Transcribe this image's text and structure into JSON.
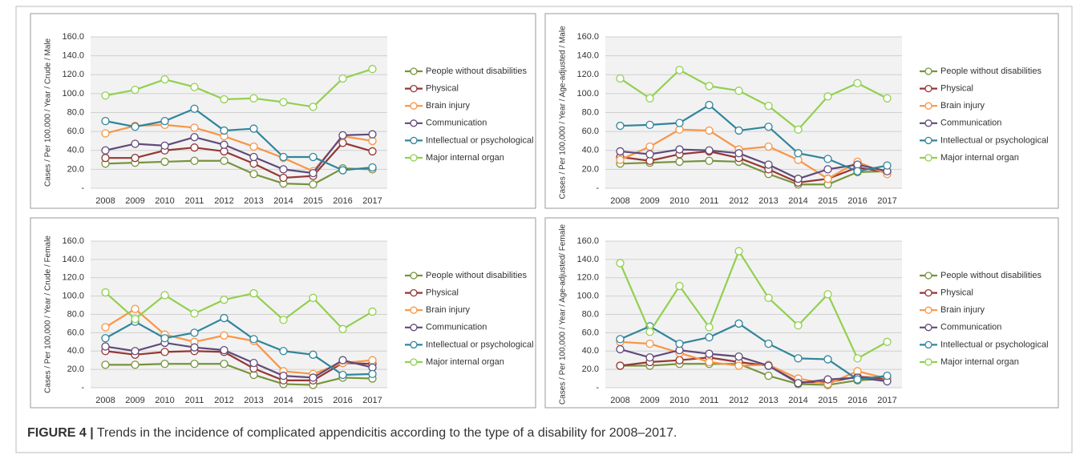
{
  "chart_data": [
    {
      "type": "line",
      "y_label": "Cases / Per 100,000 / Year / Crude / Male",
      "categories": [
        "2008",
        "2009",
        "2010",
        "2011",
        "2012",
        "2013",
        "2014",
        "2015",
        "2016",
        "2017"
      ],
      "ylim": [
        0,
        160
      ],
      "yticks": [
        {
          "value": 0,
          "label": "-"
        },
        {
          "value": 20,
          "label": "20.0"
        },
        {
          "value": 40,
          "label": "40.0"
        },
        {
          "value": 60,
          "label": "60.0"
        },
        {
          "value": 80,
          "label": "80.0"
        },
        {
          "value": 100,
          "label": "100.0"
        },
        {
          "value": 120,
          "label": "120.0"
        },
        {
          "value": 140,
          "label": "140.0"
        },
        {
          "value": 160,
          "label": "160.0"
        }
      ],
      "grid": true,
      "series": [
        {
          "name": "People without disabilities",
          "color": "#77933c",
          "values": [
            26,
            27,
            28,
            29,
            29,
            15,
            5,
            4,
            21,
            20
          ]
        },
        {
          "name": "Physical",
          "color": "#953735",
          "values": [
            32,
            32,
            40,
            43,
            39,
            26,
            11,
            13,
            48,
            39
          ]
        },
        {
          "name": "Brain injury",
          "color": "#f79646",
          "values": [
            58,
            66,
            67,
            64,
            55,
            44,
            32,
            18,
            55,
            50
          ]
        },
        {
          "name": "Communication",
          "color": "#604a7b",
          "values": [
            40,
            47,
            45,
            54,
            46,
            33,
            20,
            16,
            56,
            57
          ]
        },
        {
          "name": "Intellectual or psychological",
          "color": "#31859c",
          "values": [
            71,
            65,
            71,
            84,
            61,
            63,
            33,
            33,
            19,
            22
          ]
        },
        {
          "name": "Major internal organ",
          "color": "#92d050",
          "values": [
            98,
            104,
            115,
            107,
            94,
            95,
            91,
            86,
            116,
            126
          ]
        }
      ]
    },
    {
      "type": "line",
      "y_label": "Cases / Per 100,000 / Year / Age-adjusted / Male",
      "categories": [
        "2008",
        "2009",
        "2010",
        "2011",
        "2012",
        "2013",
        "2014",
        "2015",
        "2016",
        "2017"
      ],
      "ylim": [
        0,
        160
      ],
      "yticks": [
        {
          "value": 0,
          "label": "-"
        },
        {
          "value": 20,
          "label": "20.0"
        },
        {
          "value": 40,
          "label": "40.0"
        },
        {
          "value": 60,
          "label": "60.0"
        },
        {
          "value": 80,
          "label": "80.0"
        },
        {
          "value": 100,
          "label": "100.0"
        },
        {
          "value": 120,
          "label": "120.0"
        },
        {
          "value": 140,
          "label": "140.0"
        },
        {
          "value": 160,
          "label": "160.0"
        }
      ],
      "grid": true,
      "series": [
        {
          "name": "People without disabilities",
          "color": "#77933c",
          "values": [
            26,
            27,
            28,
            29,
            28,
            15,
            4,
            4,
            17,
            18
          ]
        },
        {
          "name": "Physical",
          "color": "#953735",
          "values": [
            33,
            29,
            36,
            39,
            32,
            20,
            6,
            10,
            22,
            17
          ]
        },
        {
          "name": "Brain injury",
          "color": "#f79646",
          "values": [
            30,
            44,
            62,
            61,
            41,
            44,
            30,
            10,
            28,
            15
          ]
        },
        {
          "name": "Communication",
          "color": "#604a7b",
          "values": [
            39,
            36,
            41,
            40,
            37,
            25,
            10,
            20,
            25,
            18
          ]
        },
        {
          "name": "Intellectual or psychological",
          "color": "#31859c",
          "values": [
            66,
            67,
            69,
            88,
            61,
            65,
            37,
            31,
            18,
            24
          ]
        },
        {
          "name": "Major internal organ",
          "color": "#92d050",
          "values": [
            116,
            95,
            125,
            108,
            103,
            87,
            62,
            97,
            111,
            95
          ]
        }
      ]
    },
    {
      "type": "line",
      "y_label": "Cases / Per 100,000 / Year / Crude / Female",
      "categories": [
        "2008",
        "2009",
        "2010",
        "2011",
        "2012",
        "2013",
        "2014",
        "2015",
        "2016",
        "2017"
      ],
      "ylim": [
        0,
        160
      ],
      "yticks": [
        {
          "value": 0,
          "label": "-"
        },
        {
          "value": 20,
          "label": "20.0"
        },
        {
          "value": 40,
          "label": "40.0"
        },
        {
          "value": 60,
          "label": "60.0"
        },
        {
          "value": 80,
          "label": "80.0"
        },
        {
          "value": 100,
          "label": "100.0"
        },
        {
          "value": 120,
          "label": "120.0"
        },
        {
          "value": 140,
          "label": "140.0"
        },
        {
          "value": 160,
          "label": "160.0"
        }
      ],
      "grid": true,
      "series": [
        {
          "name": "People without disabilities",
          "color": "#77933c",
          "values": [
            25,
            25,
            26,
            26,
            26,
            14,
            4,
            3,
            11,
            10
          ]
        },
        {
          "name": "Physical",
          "color": "#953735",
          "values": [
            40,
            36,
            39,
            40,
            39,
            21,
            8,
            8,
            27,
            26
          ]
        },
        {
          "name": "Brain injury",
          "color": "#f79646",
          "values": [
            66,
            86,
            58,
            50,
            57,
            51,
            18,
            15,
            27,
            30
          ]
        },
        {
          "name": "Communication",
          "color": "#604a7b",
          "values": [
            45,
            40,
            49,
            44,
            41,
            27,
            13,
            11,
            30,
            22
          ]
        },
        {
          "name": "Intellectual or psychological",
          "color": "#31859c",
          "values": [
            54,
            72,
            54,
            60,
            76,
            53,
            40,
            36,
            14,
            15
          ]
        },
        {
          "name": "Major internal organ",
          "color": "#92d050",
          "values": [
            104,
            75,
            101,
            81,
            96,
            103,
            74,
            98,
            64,
            83
          ]
        }
      ]
    },
    {
      "type": "line",
      "y_label": "Cases / Per 100,000 / Year / Age-adjusted/ Female",
      "categories": [
        "2008",
        "2009",
        "2010",
        "2011",
        "2012",
        "2013",
        "2014",
        "2015",
        "2016",
        "2017"
      ],
      "ylim": [
        0,
        160
      ],
      "yticks": [
        {
          "value": 0,
          "label": "-"
        },
        {
          "value": 20,
          "label": "20.0"
        },
        {
          "value": 40,
          "label": "40.0"
        },
        {
          "value": 60,
          "label": "60.0"
        },
        {
          "value": 80,
          "label": "80.0"
        },
        {
          "value": 100,
          "label": "100.0"
        },
        {
          "value": 120,
          "label": "120.0"
        },
        {
          "value": 140,
          "label": "140.0"
        },
        {
          "value": 160,
          "label": "160.0"
        }
      ],
      "grid": true,
      "series": [
        {
          "name": "People without disabilities",
          "color": "#77933c",
          "values": [
            24,
            24,
            26,
            26,
            26,
            13,
            4,
            3,
            8,
            10
          ]
        },
        {
          "name": "Physical",
          "color": "#953735",
          "values": [
            24,
            28,
            30,
            33,
            28,
            24,
            6,
            6,
            12,
            10
          ]
        },
        {
          "name": "Brain injury",
          "color": "#f79646",
          "values": [
            50,
            48,
            38,
            28,
            24,
            25,
            10,
            4,
            18,
            10
          ]
        },
        {
          "name": "Communication",
          "color": "#604a7b",
          "values": [
            42,
            33,
            41,
            37,
            34,
            24,
            5,
            9,
            11,
            7
          ]
        },
        {
          "name": "Intellectual or psychological",
          "color": "#31859c",
          "values": [
            53,
            67,
            48,
            55,
            70,
            48,
            32,
            31,
            9,
            13
          ]
        },
        {
          "name": "Major internal organ",
          "color": "#92d050",
          "values": [
            136,
            61,
            111,
            66,
            149,
            98,
            68,
            102,
            32,
            50
          ]
        }
      ]
    }
  ],
  "caption": {
    "label": "FIGURE 4 |",
    "text": " Trends in the incidence of complicated appendicitis according to the type of a disability for 2008–2017."
  }
}
